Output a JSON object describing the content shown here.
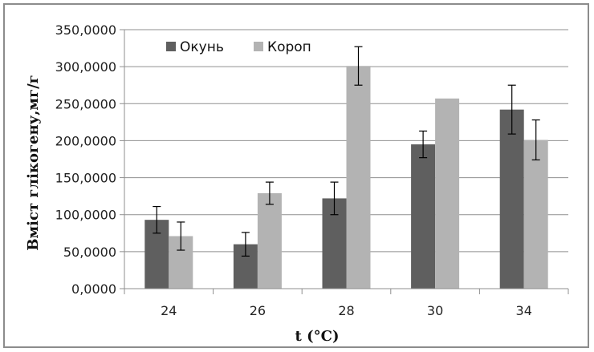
{
  "chart_data": {
    "type": "bar",
    "categories": [
      "24",
      "26",
      "28",
      "30",
      "34"
    ],
    "series": [
      {
        "name": "Окунь",
        "color": "#5f5f5f",
        "values": [
          93,
          60,
          122,
          195,
          242
        ],
        "errors": [
          18,
          16,
          22,
          18,
          33
        ]
      },
      {
        "name": "Короп",
        "color": "#b3b3b3",
        "values": [
          71,
          129,
          301,
          257,
          201
        ],
        "errors": [
          19,
          15,
          26,
          0,
          27
        ]
      }
    ],
    "y_ticks": [
      "0,0000",
      "50,0000",
      "100,0000",
      "150,0000",
      "200,0000",
      "250,0000",
      "300,0000",
      "350,0000"
    ],
    "ylim": [
      0,
      350
    ],
    "xlabel": "t (°C)",
    "ylabel": "Вміст глікогену,мг/г",
    "grid": true,
    "legend_position": "top-left"
  }
}
